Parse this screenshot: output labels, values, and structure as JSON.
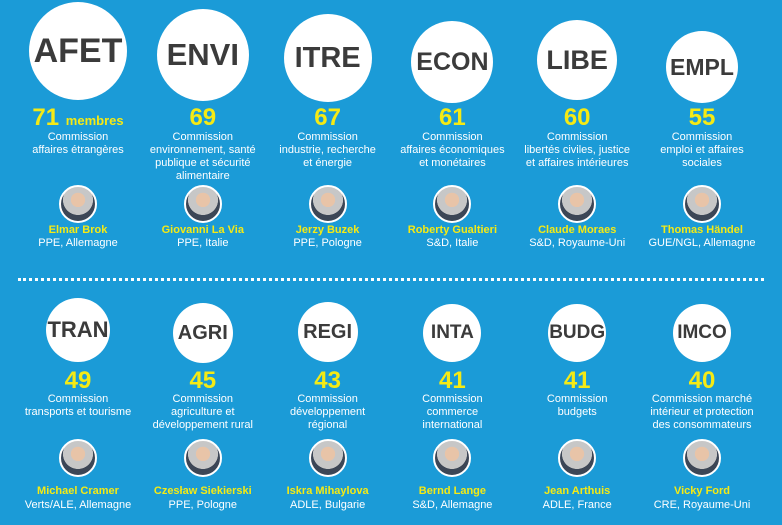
{
  "rows": [
    [
      {
        "code": "AFET",
        "members": 71,
        "members_unit": "membres",
        "description": [
          "Commission",
          "affaires étrangères"
        ],
        "name": "Elmar Brok",
        "affiliation": "PPE, Allemagne"
      },
      {
        "code": "ENVI",
        "members": 69,
        "description": [
          "Commission",
          "environnement, santé",
          "publique et sécurité",
          "alimentaire"
        ],
        "name": "Giovanni La Via",
        "affiliation": "PPE, Italie"
      },
      {
        "code": "ITRE",
        "members": 67,
        "description": [
          "Commission",
          "industrie, recherche",
          "et énergie"
        ],
        "name": "Jerzy Buzek",
        "affiliation": "PPE, Pologne"
      },
      {
        "code": "ECON",
        "members": 61,
        "description": [
          "Commission",
          "affaires économiques",
          "et monétaires"
        ],
        "name": "Roberty Gualtieri",
        "affiliation": "S&D, Italie"
      },
      {
        "code": "LIBE",
        "members": 60,
        "description": [
          "Commission",
          "libertés civiles, justice",
          "et affaires intérieures"
        ],
        "name": "Claude Moraes",
        "affiliation": "S&D, Royaume-Uni"
      },
      {
        "code": "EMPL",
        "members": 55,
        "description": [
          "Commission",
          "emploi et affaires",
          "sociales"
        ],
        "name": "Thomas Händel",
        "affiliation": "GUE/NGL, Allemagne"
      }
    ],
    [
      {
        "code": "TRAN",
        "members": 49,
        "description": [
          "Commission",
          "transports et tourisme"
        ],
        "name": "Michael Cramer",
        "affiliation": "Verts/ALE, Allemagne"
      },
      {
        "code": "AGRI",
        "members": 45,
        "description": [
          "Commission",
          "agriculture et",
          "développement rural"
        ],
        "name": "Czesław Siekierski",
        "affiliation": "PPE, Pologne"
      },
      {
        "code": "REGI",
        "members": 43,
        "description": [
          "Commission",
          "développement",
          "régional"
        ],
        "name": "Iskra Mihaylova",
        "affiliation": "ADLE, Bulgarie"
      },
      {
        "code": "INTA",
        "members": 41,
        "description": [
          "Commission",
          "commerce",
          "international"
        ],
        "name": "Bernd Lange",
        "affiliation": "S&D, Allemagne"
      },
      {
        "code": "BUDG",
        "members": 41,
        "description": [
          "Commission",
          "budgets"
        ],
        "name": "Jean Arthuis",
        "affiliation": "ADLE, France"
      },
      {
        "code": "IMCO",
        "members": 40,
        "description": [
          "Commission marché",
          "intérieur et protection",
          "des consommateurs"
        ],
        "name": "Vicky Ford",
        "affiliation": "CRE, Royaume-Uni"
      }
    ]
  ]
}
